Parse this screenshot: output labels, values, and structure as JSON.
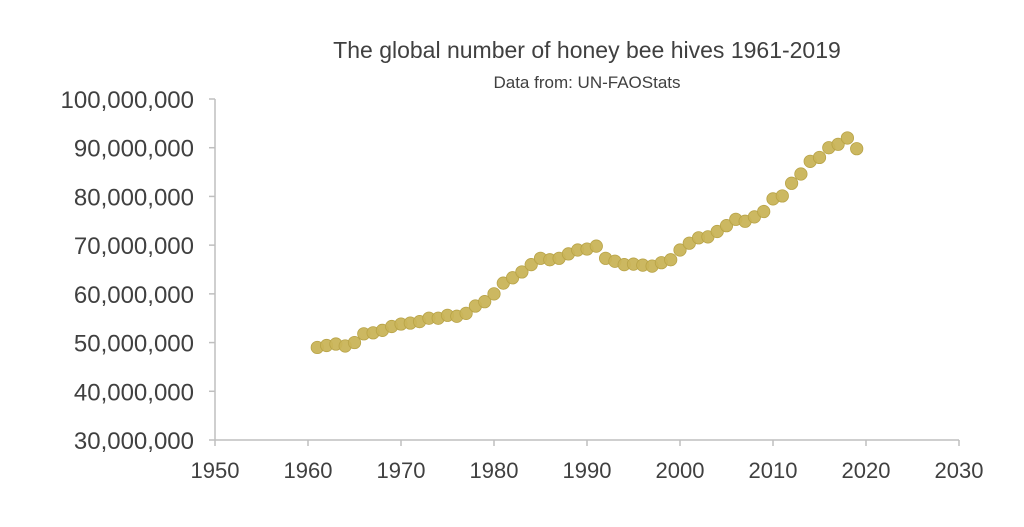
{
  "chart_data": {
    "type": "scatter",
    "title": "The global number of honey bee hives 1961-2019",
    "subtitle": "Data from: UN-FAOStats",
    "xlabel": "",
    "ylabel": "",
    "xlim": [
      1950,
      2030
    ],
    "ylim": [
      30000000,
      100000000
    ],
    "x_ticks": [
      1950,
      1960,
      1970,
      1980,
      1990,
      2000,
      2010,
      2020,
      2030
    ],
    "x_tick_labels": [
      "1950",
      "1960",
      "1970",
      "1980",
      "1990",
      "2000",
      "2010",
      "2020",
      "2030"
    ],
    "y_ticks": [
      30000000,
      40000000,
      50000000,
      60000000,
      70000000,
      80000000,
      90000000,
      100000000
    ],
    "y_tick_labels": [
      "30,000,000",
      "40,000,000",
      "50,000,000",
      "60,000,000",
      "70,000,000",
      "80,000,000",
      "90,000,000",
      "100,000,000"
    ],
    "grid": false,
    "legend": "none",
    "marker_color": "#C9B458",
    "axis_color": "#BFBFBF",
    "series": [
      {
        "x": [
          1961,
          1962,
          1963,
          1964,
          1965,
          1966,
          1967,
          1968,
          1969,
          1970,
          1971,
          1972,
          1973,
          1974,
          1975,
          1976,
          1977,
          1978,
          1979,
          1980,
          1981,
          1982,
          1983,
          1984,
          1985,
          1986,
          1987,
          1988,
          1989,
          1990,
          1991,
          1992,
          1993,
          1994,
          1995,
          1996,
          1997,
          1998,
          1999,
          2000,
          2001,
          2002,
          2003,
          2004,
          2005,
          2006,
          2007,
          2008,
          2009,
          2010,
          2011,
          2012,
          2013,
          2014,
          2015,
          2016,
          2017,
          2018,
          2019
        ],
        "y": [
          49000000,
          49400000,
          49700000,
          49300000,
          50000000,
          51800000,
          52000000,
          52500000,
          53300000,
          53800000,
          54000000,
          54300000,
          55000000,
          55000000,
          55600000,
          55400000,
          56000000,
          57500000,
          58400000,
          60000000,
          62200000,
          63300000,
          64500000,
          66000000,
          67300000,
          67000000,
          67300000,
          68200000,
          69000000,
          69200000,
          69800000,
          67300000,
          66700000,
          66000000,
          66100000,
          65900000,
          65700000,
          66400000,
          67000000,
          69000000,
          70400000,
          71500000,
          71700000,
          72800000,
          74000000,
          75300000,
          74900000,
          75800000,
          76900000,
          79500000,
          80100000,
          82700000,
          84600000,
          87200000,
          88000000,
          90000000,
          90700000,
          92000000,
          89800000
        ]
      }
    ]
  }
}
